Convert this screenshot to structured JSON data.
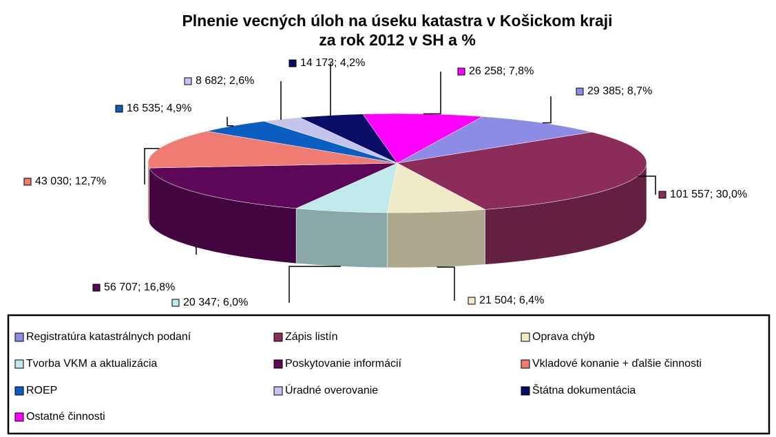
{
  "chart_data": {
    "type": "pie3d",
    "title": [
      "Plnenie vecných úloh na úseku katastra v Košickom kraji",
      "za rok 2012 v SH a %"
    ],
    "categories": [
      "Registratúra katastrálnych podaní",
      "Zápis listín",
      "Oprava chýb",
      "Tvorba VKM a aktualizácia",
      "Poskytovanie informácií",
      "Vkladové konanie + ďalšie činnosti",
      "ROEP",
      "Úradné overovanie",
      "Štátna dokumentácia",
      "Ostatné činnosti"
    ],
    "values": [
      29385,
      101557,
      21504,
      20347,
      56707,
      43030,
      16535,
      8682,
      14173,
      26258
    ],
    "value_labels": [
      "29 385; 8,7%",
      "101 557; 30,0%",
      "21 504; 6,4%",
      "20 347; 6,0%",
      "56 707; 16,8%",
      "43 030; 12,7%",
      "16 535; 4,9%",
      "8 682; 2,6%",
      "14 173; 4,2%",
      "26 258; 7,8%"
    ],
    "colors": [
      "#8c8ce6",
      "#8b2c5a",
      "#efebc6",
      "#bfe9ea",
      "#5c0758",
      "#ef7b72",
      "#0a5ec2",
      "#c4c4ee",
      "#0b0b68",
      "#ff00ff"
    ],
    "legend": "bottom"
  }
}
